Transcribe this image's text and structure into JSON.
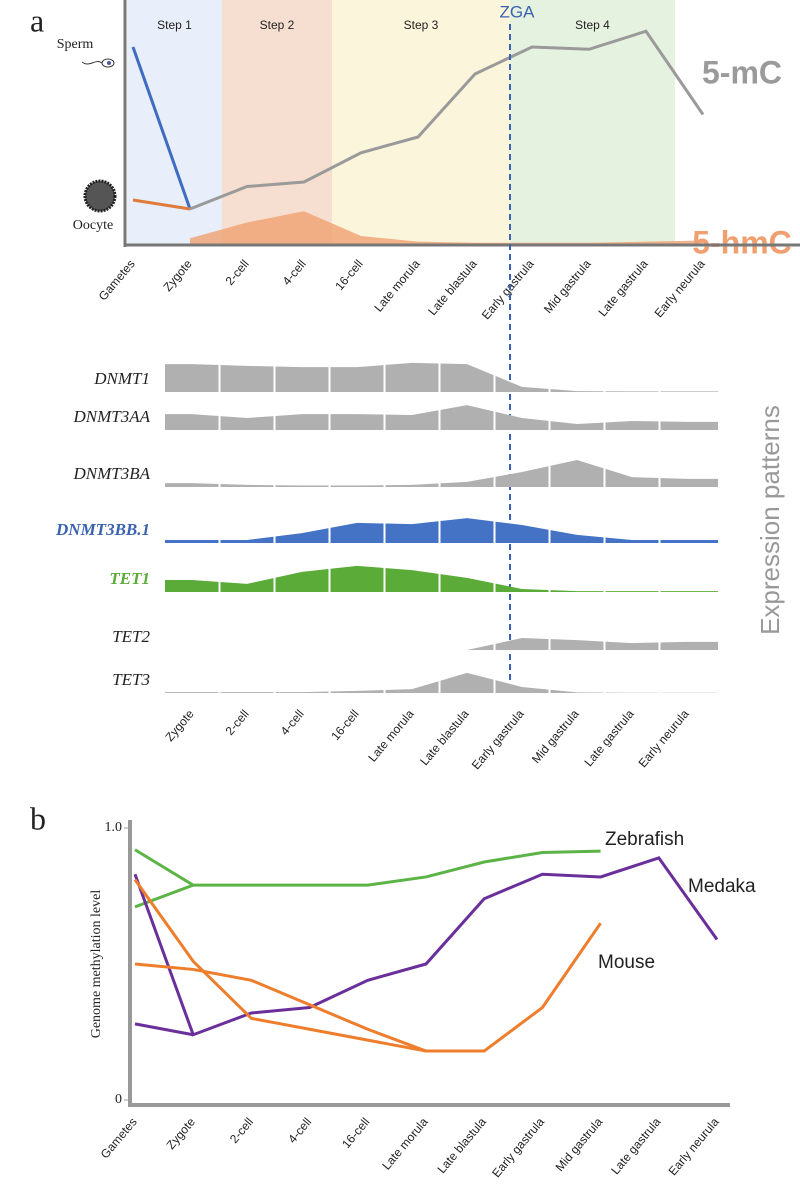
{
  "chart_data": [
    {
      "type": "line",
      "panel": "a",
      "categories": [
        "Gametes",
        "Zygote",
        "2-cell",
        "4-cell",
        "16-cell",
        "Late morula",
        "Late blastula",
        "Early gastrula",
        "Mid gastrula",
        "Late gastrula",
        "Early neurula"
      ],
      "steps": [
        "Step 1",
        "Step 2",
        "Step 3",
        "Step 4"
      ],
      "annotation": "ZGA",
      "ylim": [
        0,
        100
      ],
      "series": [
        {
          "name": "Sperm",
          "color": "#3d6cc0",
          "values": [
            88,
            16,
            null,
            null,
            null,
            null,
            null,
            null,
            null,
            null,
            null
          ]
        },
        {
          "name": "Oocyte",
          "color": "#e07b3a",
          "values": [
            20,
            16,
            null,
            null,
            null,
            null,
            null,
            null,
            null,
            null,
            null
          ]
        },
        {
          "name": "5-mC",
          "color": "#9a9a9a",
          "values": [
            null,
            16,
            26,
            28,
            41,
            48,
            76,
            88,
            87,
            95,
            58
          ]
        },
        {
          "name": "5-hmC",
          "color": "#f0a070",
          "area": true,
          "values": [
            null,
            3,
            10,
            15,
            4,
            1.5,
            1,
            1,
            1,
            1.5,
            2
          ]
        }
      ]
    },
    {
      "type": "expression-rows",
      "categories": [
        "Zygote",
        "2-cell",
        "4-cell",
        "16-cell",
        "Late morula",
        "Late blastula",
        "Early gastrula",
        "Mid gastrula",
        "Late gastrula",
        "Early neurula"
      ],
      "ylabel": "Expression patterns",
      "ylim": [
        0,
        10
      ],
      "rows": [
        {
          "name": "DNMT1",
          "color": "#b0b0b0",
          "name_color": "#222222",
          "values": [
            9.3,
            8.7,
            8.3,
            8.3,
            9.7,
            9.3,
            1.7,
            0.3,
            0.2,
            0.2
          ]
        },
        {
          "name": "DNMT3AA",
          "color": "#b0b0b0",
          "name_color": "#222222",
          "values": [
            5.3,
            4,
            5.3,
            5.3,
            5,
            8.3,
            4,
            2,
            3,
            2.7
          ]
        },
        {
          "name": "DNMT3BA",
          "color": "#b0b0b0",
          "name_color": "#222222",
          "values": [
            1.3,
            0.7,
            0.5,
            0.5,
            0.7,
            1.7,
            5,
            9,
            3.3,
            2.7
          ]
        },
        {
          "name": "DNMT3BB.1",
          "color": "#4472c4",
          "name_color": "#3a62b0",
          "values": [
            1,
            1,
            3.3,
            6.7,
            6.3,
            8.3,
            6,
            2.7,
            1,
            1
          ]
        },
        {
          "name": "TET1",
          "color": "#5aab38",
          "name_color": "#5aab38",
          "values": [
            4,
            2.7,
            6.7,
            8.7,
            7.3,
            4.7,
            1,
            0.3,
            0.3,
            0.3
          ]
        },
        {
          "name": "TET2",
          "color": "#b0b0b0",
          "name_color": "#222222",
          "values": [
            0,
            0,
            0,
            0,
            0,
            0,
            4,
            3.3,
            2.3,
            2.7
          ]
        },
        {
          "name": "TET3",
          "color": "#b0b0b0",
          "name_color": "#222222",
          "values": [
            0.3,
            0.3,
            0.3,
            0.7,
            1.3,
            6.7,
            2,
            0.2,
            0.1,
            0.1
          ]
        }
      ]
    },
    {
      "type": "line",
      "panel": "b",
      "ylabel": "Genome methylation level",
      "categories": [
        "Gametes",
        "Zygote",
        "2-cell",
        "4-cell",
        "16-cell",
        "Late morula",
        "Late blastula",
        "Early gastrula",
        "Mid gastrula",
        "Late gastrula",
        "Early neurula"
      ],
      "ylim": [
        0,
        1
      ],
      "yticks": [
        0,
        {
          "value": 1,
          "label": "1.0"
        }
      ],
      "series": [
        {
          "name": "Zebrafish",
          "color": "#5cb346",
          "lines": [
            [
              0.92,
              0.79,
              0.79,
              0.79,
              0.79,
              0.82,
              0.875,
              0.91,
              0.915,
              null,
              null
            ],
            [
              0.71,
              0.79,
              null,
              null,
              null,
              null,
              null,
              null,
              null,
              null,
              null
            ]
          ]
        },
        {
          "name": "Medaka",
          "color": "#6a2f9a",
          "lines": [
            [
              0.83,
              0.24,
              0.32,
              0.34,
              0.44,
              0.5,
              0.74,
              0.83,
              0.82,
              0.89,
              0.59
            ],
            [
              0.28,
              0.24,
              null,
              null,
              null,
              null,
              null,
              null,
              null,
              null,
              null
            ]
          ]
        },
        {
          "name": "Mouse",
          "color": "#ee7d2c",
          "lines": [
            [
              0.81,
              0.51,
              0.3,
              0.26,
              0.22,
              0.18,
              0.18,
              0.34,
              0.65,
              null,
              null
            ],
            [
              0.5,
              0.48,
              0.44,
              0.35,
              0.26,
              0.18,
              null,
              null,
              null,
              null,
              null
            ]
          ]
        }
      ]
    }
  ]
}
